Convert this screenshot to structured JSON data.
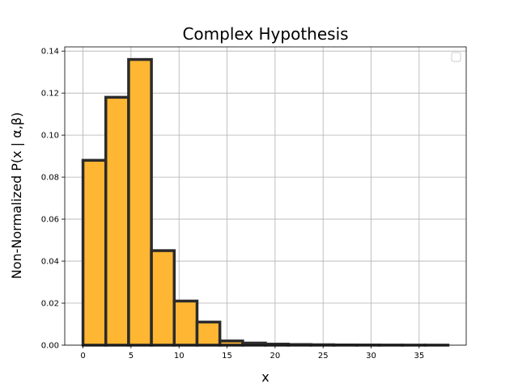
{
  "chart_data": {
    "type": "bar",
    "title": "Complex Hypothesis",
    "xlabel": "x",
    "ylabel": "Non-Normalized P(x | α,β)",
    "xlim": [
      -1.9,
      39.9
    ],
    "ylim": [
      0,
      0.142
    ],
    "xticks": [
      0,
      5,
      10,
      15,
      20,
      25,
      30,
      35
    ],
    "yticks": [
      "0.00",
      "0.02",
      "0.04",
      "0.06",
      "0.08",
      "0.10",
      "0.12",
      "0.14"
    ],
    "bin_edges": [
      0,
      2.375,
      4.75,
      7.125,
      9.5,
      11.875,
      14.25,
      16.625,
      19.0,
      21.375,
      23.75,
      26.125,
      28.5,
      30.875,
      33.25,
      35.625,
      38.0
    ],
    "values": [
      0.088,
      0.118,
      0.136,
      0.045,
      0.021,
      0.011,
      0.002,
      0.001,
      0.0005,
      0.0003,
      0.0002,
      0.0001,
      8e-05,
      5e-05,
      3e-05,
      2e-05
    ],
    "bar_color": "#ffb733",
    "edge_color": "#2b2b2b",
    "grid": true,
    "legend": "top-right, empty"
  }
}
